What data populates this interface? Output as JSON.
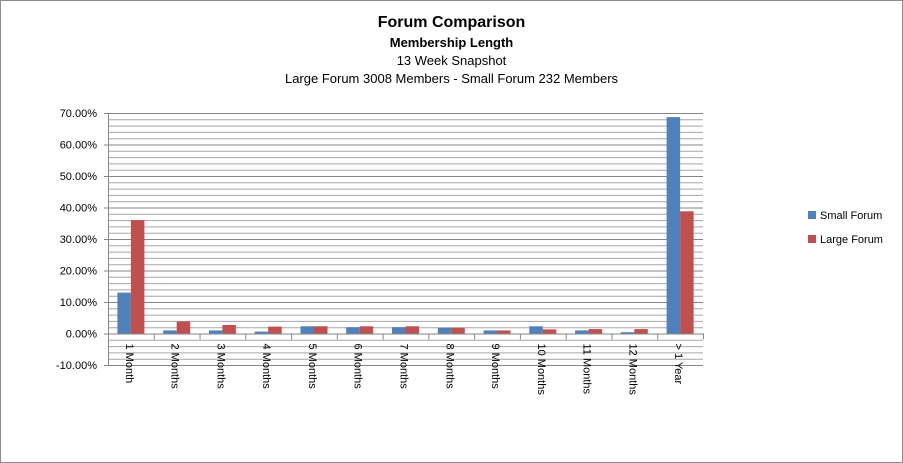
{
  "chart_data": {
    "type": "bar",
    "title": "Forum Comparison",
    "subtitle": "Membership Length",
    "subtitle2": "13 Week Snapshot",
    "subtitle3": "Large Forum 3008  Members  - Small Forum 232 Members",
    "categories": [
      "1 Month",
      "2 Months",
      "3 Months",
      "4 Months",
      "5 Months",
      "6 Months",
      "7 Months",
      "8 Months",
      "9 Months",
      "10 Months",
      "11 Months",
      "12 Months",
      "> 1 Year"
    ],
    "series": [
      {
        "name": "Small Forum",
        "color": "#4f81bd",
        "values": [
          13.0,
          1.0,
          1.0,
          0.6,
          2.3,
          2.0,
          2.0,
          1.8,
          1.0,
          2.3,
          1.0,
          0.4,
          68.7
        ]
      },
      {
        "name": "Large Forum",
        "color": "#c0504d",
        "values": [
          36.0,
          3.8,
          2.7,
          2.2,
          2.3,
          2.3,
          2.3,
          1.8,
          1.0,
          1.3,
          1.4,
          1.4,
          38.8
        ]
      }
    ],
    "ylim": [
      -10,
      70
    ],
    "yticks": [
      "-10.00%",
      "0.00%",
      "10.00%",
      "20.00%",
      "30.00%",
      "40.00%",
      "50.00%",
      "60.00%",
      "70.00%"
    ],
    "grid": true,
    "legend_position": "right"
  }
}
